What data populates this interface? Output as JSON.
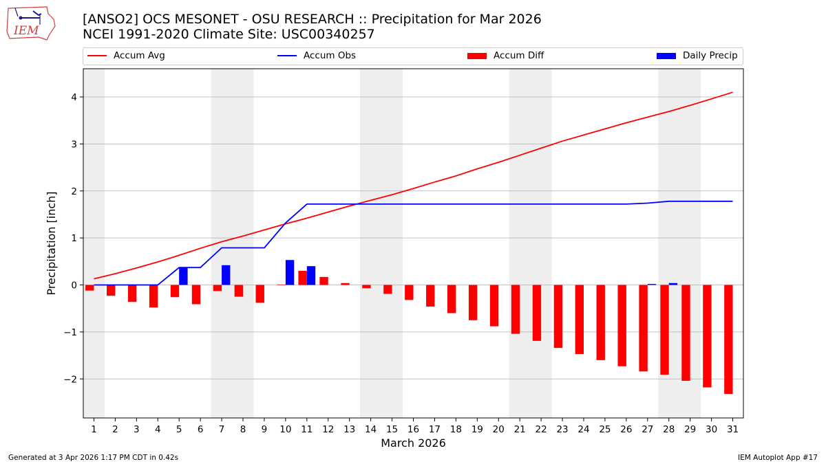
{
  "header": {
    "logo_text": "IEM",
    "title_line1": "[ANSO2] OCS MESONET - OSU RESEARCH :: Precipitation for Mar 2026",
    "title_line2": "NCEI 1991-2020 Climate Site: USC00340257"
  },
  "footer": {
    "left": "Generated at 3 Apr 2026 1:17 PM CDT in 0.42s",
    "right": "IEM Autoplot App #17"
  },
  "colors": {
    "accum_avg": "#ff0000",
    "accum_obs": "#0000ff",
    "accum_diff": "#ff0000",
    "daily_precip": "#0000ff",
    "weekend_shade": "#eeeeee",
    "grid": "#b0b0b0"
  },
  "chart_data": {
    "type": "bar",
    "title": "[ANSO2] OCS MESONET - OSU RESEARCH :: Precipitation for Mar 2026",
    "subtitle": "NCEI 1991-2020 Climate Site: USC00340257",
    "xlabel": "March 2026",
    "ylabel": "Precipitation [inch]",
    "x": [
      1,
      2,
      3,
      4,
      5,
      6,
      7,
      8,
      9,
      10,
      11,
      12,
      13,
      14,
      15,
      16,
      17,
      18,
      19,
      20,
      21,
      22,
      23,
      24,
      25,
      26,
      27,
      28,
      29,
      30,
      31
    ],
    "xlim": [
      0.5,
      31.5
    ],
    "ylim": [
      -2.83,
      4.6
    ],
    "yticks": [
      -2,
      -1,
      0,
      1,
      2,
      3,
      4
    ],
    "ytick_labels": [
      "−2",
      "−1",
      "0",
      "1",
      "2",
      "3",
      "4"
    ],
    "grid": "horizontal",
    "legend": {
      "placement": "top",
      "entries": [
        {
          "name": "Accum Avg",
          "kind": "line",
          "color": "#ff0000"
        },
        {
          "name": "Accum Obs",
          "kind": "line",
          "color": "#0000ff"
        },
        {
          "name": "Accum Diff",
          "kind": "bar",
          "color": "#ff0000"
        },
        {
          "name": "Daily Precip",
          "kind": "bar",
          "color": "#0000ff"
        }
      ]
    },
    "weekend_spans": [
      [
        0.5,
        1.5
      ],
      [
        6.5,
        8.5
      ],
      [
        13.5,
        15.5
      ],
      [
        20.5,
        22.5
      ],
      [
        27.5,
        29.5
      ]
    ],
    "series": [
      {
        "name": "Accum Avg",
        "kind": "line",
        "color": "#ff0000",
        "values": [
          0.13,
          0.24,
          0.36,
          0.49,
          0.63,
          0.78,
          0.92,
          1.04,
          1.17,
          1.3,
          1.42,
          1.55,
          1.68,
          1.8,
          1.92,
          2.05,
          2.19,
          2.32,
          2.47,
          2.61,
          2.76,
          2.91,
          3.06,
          3.19,
          3.32,
          3.45,
          3.57,
          3.69,
          3.82,
          3.96,
          4.1
        ]
      },
      {
        "name": "Accum Obs",
        "kind": "line",
        "color": "#0000ff",
        "values": [
          0.0,
          0.0,
          0.0,
          0.0,
          0.37,
          0.37,
          0.79,
          0.79,
          0.79,
          1.32,
          1.72,
          1.72,
          1.72,
          1.72,
          1.72,
          1.72,
          1.72,
          1.72,
          1.72,
          1.72,
          1.72,
          1.72,
          1.72,
          1.72,
          1.72,
          1.72,
          1.74,
          1.78,
          1.78,
          1.78,
          1.78
        ]
      },
      {
        "name": "Accum Diff",
        "kind": "bar",
        "color": "#ff0000",
        "values": [
          -0.12,
          -0.23,
          -0.36,
          -0.48,
          -0.26,
          -0.41,
          -0.13,
          -0.25,
          -0.38,
          0.01,
          0.3,
          0.17,
          0.04,
          -0.07,
          -0.19,
          -0.32,
          -0.46,
          -0.6,
          -0.75,
          -0.88,
          -1.04,
          -1.19,
          -1.34,
          -1.47,
          -1.6,
          -1.73,
          -1.84,
          -1.91,
          -2.04,
          -2.18,
          -2.32
        ]
      },
      {
        "name": "Daily Precip",
        "kind": "bar",
        "color": "#0000ff",
        "values": [
          0,
          0,
          0,
          0,
          0.37,
          0,
          0.42,
          0,
          0,
          0.53,
          0.4,
          0,
          0,
          0,
          0,
          0,
          0,
          0,
          0,
          0,
          0,
          0,
          0,
          0,
          0,
          0,
          0.02,
          0.04,
          0,
          0,
          0
        ]
      }
    ]
  }
}
